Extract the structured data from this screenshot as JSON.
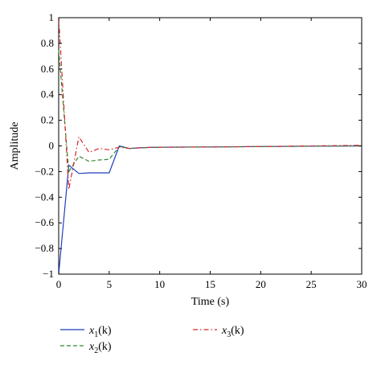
{
  "chart_data": {
    "type": "line",
    "xlabel": "Time (s)",
    "ylabel": "Amplitude",
    "xlim": [
      0,
      30
    ],
    "ylim": [
      -1,
      1
    ],
    "xticks": [
      "0",
      "5",
      "10",
      "15",
      "20",
      "25",
      "30"
    ],
    "yticks": [
      "−1",
      "−0.8",
      "−0.6",
      "−0.4",
      "−0.2",
      "0",
      "0.2",
      "0.4",
      "0.6",
      "0.8",
      "1"
    ],
    "grid": false,
    "legend_position": "bottom",
    "series": [
      {
        "name": "x1(k)",
        "label_base": "x",
        "label_sub": "1",
        "label_arg": "(k)",
        "color": "#1f3fbf",
        "style": "solid",
        "x": [
          0,
          1,
          2,
          3,
          4,
          5,
          6,
          7,
          8,
          9,
          10,
          15,
          20,
          25,
          30
        ],
        "y": [
          -1.0,
          -0.15,
          -0.215,
          -0.21,
          -0.21,
          -0.21,
          0.0,
          -0.02,
          -0.015,
          -0.012,
          -0.01,
          -0.008,
          -0.005,
          -0.002,
          0.0
        ]
      },
      {
        "name": "x2(k)",
        "label_base": "x",
        "label_sub": "2",
        "label_arg": "(k)",
        "color": "#2e8b2e",
        "style": "dashed",
        "x": [
          0,
          1,
          2,
          3,
          4,
          5,
          6,
          7,
          8,
          9,
          10,
          15,
          20,
          25,
          30
        ],
        "y": [
          0.75,
          -0.2,
          -0.08,
          -0.12,
          -0.11,
          -0.105,
          -0.005,
          -0.02,
          -0.015,
          -0.012,
          -0.01,
          -0.008,
          -0.005,
          -0.002,
          0.0
        ]
      },
      {
        "name": "x3(k)",
        "label_base": "x",
        "label_sub": "3",
        "label_arg": "(k)",
        "color": "#d62728",
        "style": "dashdot",
        "x": [
          0,
          1,
          2,
          3,
          4,
          5,
          6,
          7,
          8,
          9,
          10,
          15,
          20,
          25,
          30
        ],
        "y": [
          1.0,
          -0.34,
          0.07,
          -0.05,
          -0.02,
          -0.03,
          -0.01,
          -0.02,
          -0.015,
          -0.012,
          -0.01,
          -0.008,
          -0.005,
          0.0,
          0.005
        ]
      }
    ]
  }
}
